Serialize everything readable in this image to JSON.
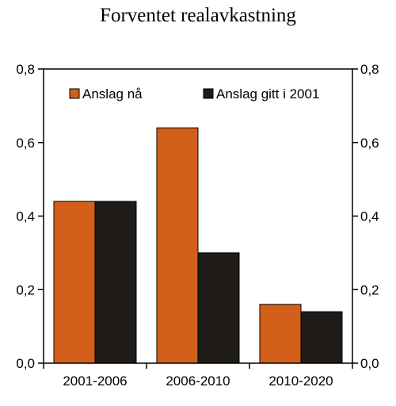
{
  "chart_data": {
    "type": "bar",
    "title": "Forventet realavkastning",
    "categories": [
      "2001-2006",
      "2006-2010",
      "2010-2020"
    ],
    "series": [
      {
        "name": "Anslag nå",
        "values": [
          0.44,
          0.64,
          0.16
        ],
        "color": "#d2601a"
      },
      {
        "name": "Anslag gitt i 2001",
        "values": [
          0.44,
          0.3,
          0.14
        ],
        "color": "#1e1b18"
      }
    ],
    "ylim": [
      0,
      0.8
    ],
    "yticks": [
      "0,0",
      "0,2",
      "0,4",
      "0,6",
      "0,8"
    ],
    "ytick_values": [
      0,
      0.2,
      0.4,
      0.6,
      0.8
    ],
    "secondary_axis": true,
    "grid": false,
    "legend_position": "top"
  }
}
